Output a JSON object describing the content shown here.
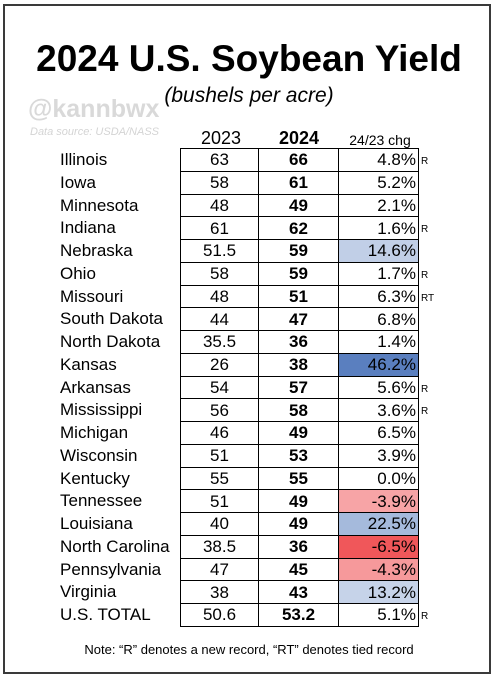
{
  "chart_data": {
    "type": "table",
    "title": "2024 U.S. Soybean Yield",
    "subtitle": "(bushels per acre)",
    "columns": [
      "2023",
      "2024",
      "24/23 chg"
    ],
    "rows": [
      {
        "state": "Illinois",
        "y2023": "63",
        "y2024": "66",
        "chg": "4.8%",
        "mark": "R"
      },
      {
        "state": "Iowa",
        "y2023": "58",
        "y2024": "61",
        "chg": "5.2%",
        "mark": ""
      },
      {
        "state": "Minnesota",
        "y2023": "48",
        "y2024": "49",
        "chg": "2.1%",
        "mark": ""
      },
      {
        "state": "Indiana",
        "y2023": "61",
        "y2024": "62",
        "chg": "1.6%",
        "mark": "R"
      },
      {
        "state": "Nebraska",
        "y2023": "51.5",
        "y2024": "59",
        "chg": "14.6%",
        "mark": ""
      },
      {
        "state": "Ohio",
        "y2023": "58",
        "y2024": "59",
        "chg": "1.7%",
        "mark": "R"
      },
      {
        "state": "Missouri",
        "y2023": "48",
        "y2024": "51",
        "chg": "6.3%",
        "mark": "RT"
      },
      {
        "state": "South Dakota",
        "y2023": "44",
        "y2024": "47",
        "chg": "6.8%",
        "mark": ""
      },
      {
        "state": "North Dakota",
        "y2023": "35.5",
        "y2024": "36",
        "chg": "1.4%",
        "mark": ""
      },
      {
        "state": "Kansas",
        "y2023": "26",
        "y2024": "38",
        "chg": "46.2%",
        "mark": ""
      },
      {
        "state": "Arkansas",
        "y2023": "54",
        "y2024": "57",
        "chg": "5.6%",
        "mark": "R"
      },
      {
        "state": "Mississippi",
        "y2023": "56",
        "y2024": "58",
        "chg": "3.6%",
        "mark": "R"
      },
      {
        "state": "Michigan",
        "y2023": "46",
        "y2024": "49",
        "chg": "6.5%",
        "mark": ""
      },
      {
        "state": "Wisconsin",
        "y2023": "51",
        "y2024": "53",
        "chg": "3.9%",
        "mark": ""
      },
      {
        "state": "Kentucky",
        "y2023": "55",
        "y2024": "55",
        "chg": "0.0%",
        "mark": ""
      },
      {
        "state": "Tennessee",
        "y2023": "51",
        "y2024": "49",
        "chg": "-3.9%",
        "mark": ""
      },
      {
        "state": "Louisiana",
        "y2023": "40",
        "y2024": "49",
        "chg": "22.5%",
        "mark": ""
      },
      {
        "state": "North Carolina",
        "y2023": "38.5",
        "y2024": "36",
        "chg": "-6.5%",
        "mark": ""
      },
      {
        "state": "Pennsylvania",
        "y2023": "47",
        "y2024": "45",
        "chg": "-4.3%",
        "mark": ""
      },
      {
        "state": "Virginia",
        "y2023": "38",
        "y2024": "43",
        "chg": "13.2%",
        "mark": ""
      },
      {
        "state": "U.S. TOTAL",
        "y2023": "50.6",
        "y2024": "53.2",
        "chg": "5.1%",
        "mark": "R"
      }
    ],
    "heat_colors": {
      "positive_max": "#5a7fbf",
      "negative_max": "#f0575a",
      "neutral": "#ffffff"
    }
  },
  "header": {
    "title": "2024 U.S. Soybean Yield",
    "subtitle": "(bushels per acre)",
    "watermark": "@kannbwx",
    "source": "Data source: USDA/NASS",
    "col_2023": "2023",
    "col_2024": "2024",
    "col_chg": "24/23 chg"
  },
  "footer": {
    "note": "Note: “R” denotes a new record, “RT” denotes tied record"
  }
}
